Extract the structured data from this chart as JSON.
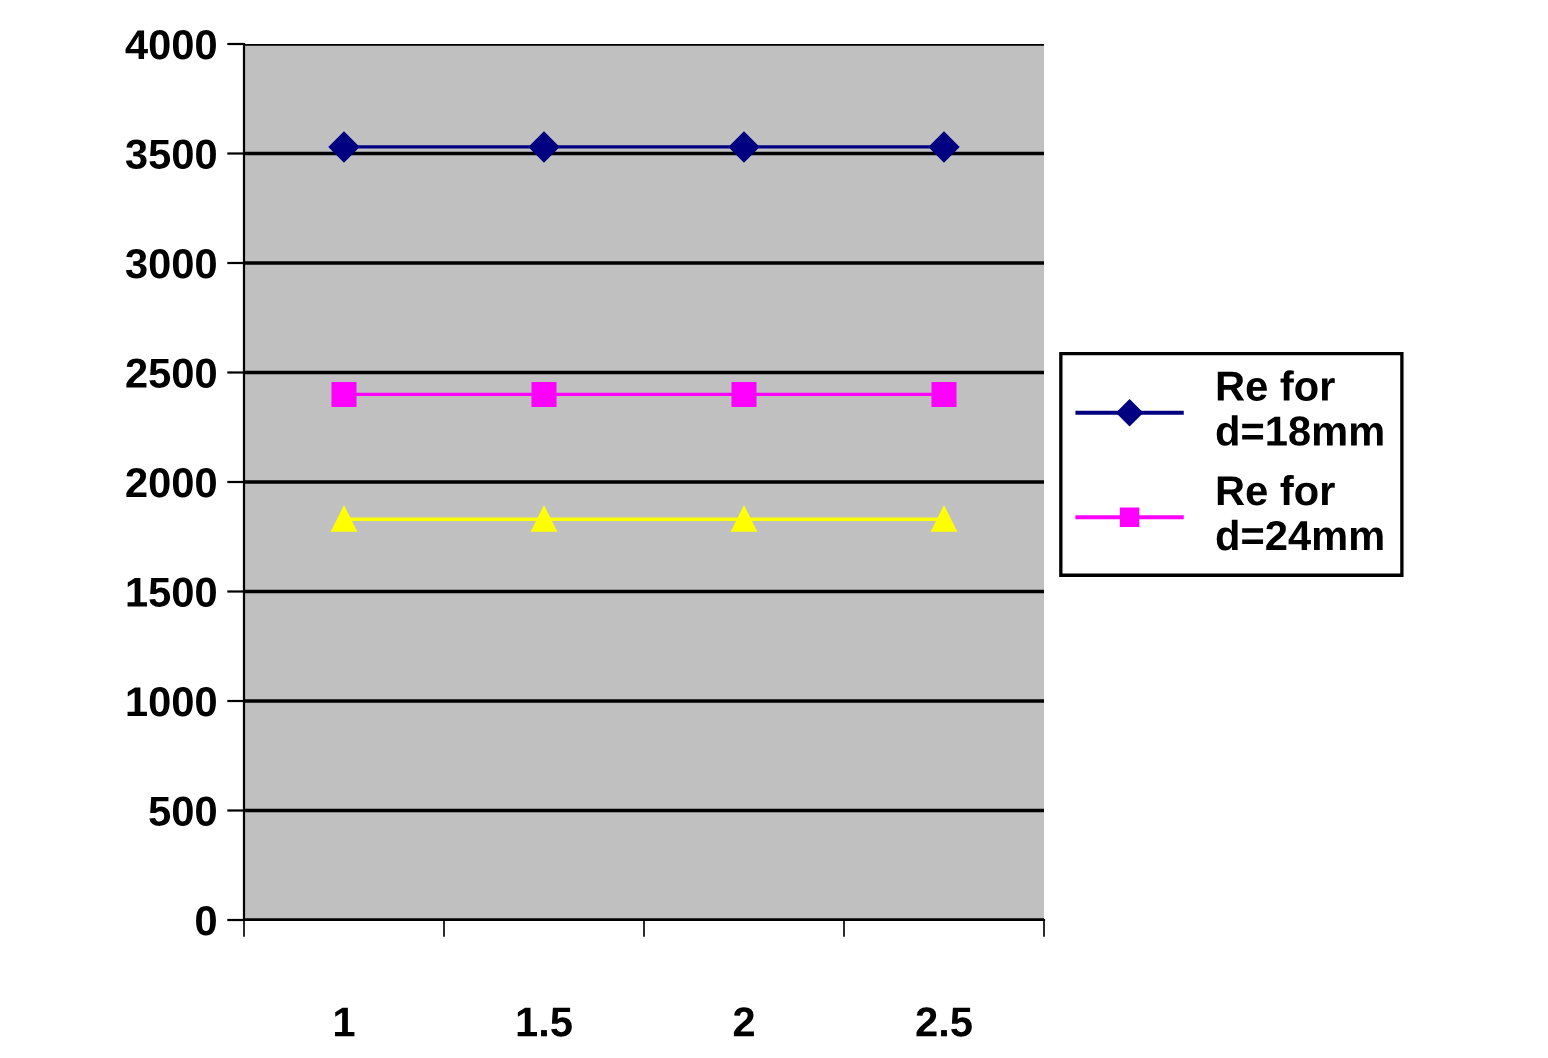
{
  "chart_data": {
    "type": "line",
    "categories": [
      "1",
      "1.5",
      "2",
      "2.5"
    ],
    "series": [
      {
        "name": "Re for\nd=18mm",
        "color": "#000080",
        "marker": "diamond",
        "values": [
          3530,
          3530,
          3530,
          3530
        ]
      },
      {
        "name": "Re for\nd=24mm",
        "color": "#ff00ff",
        "marker": "square",
        "values": [
          2400,
          2400,
          2400,
          2400
        ]
      },
      {
        "color": "#ffff00",
        "marker": "triangle",
        "values": [
          1830,
          1830,
          1830,
          1830
        ]
      }
    ],
    "ylim": [
      0,
      4000
    ],
    "yticks": [
      0,
      500,
      1000,
      1500,
      2000,
      2500,
      3000,
      3500,
      4000
    ],
    "grid": "y",
    "legend": "right",
    "line_style": "solid"
  }
}
